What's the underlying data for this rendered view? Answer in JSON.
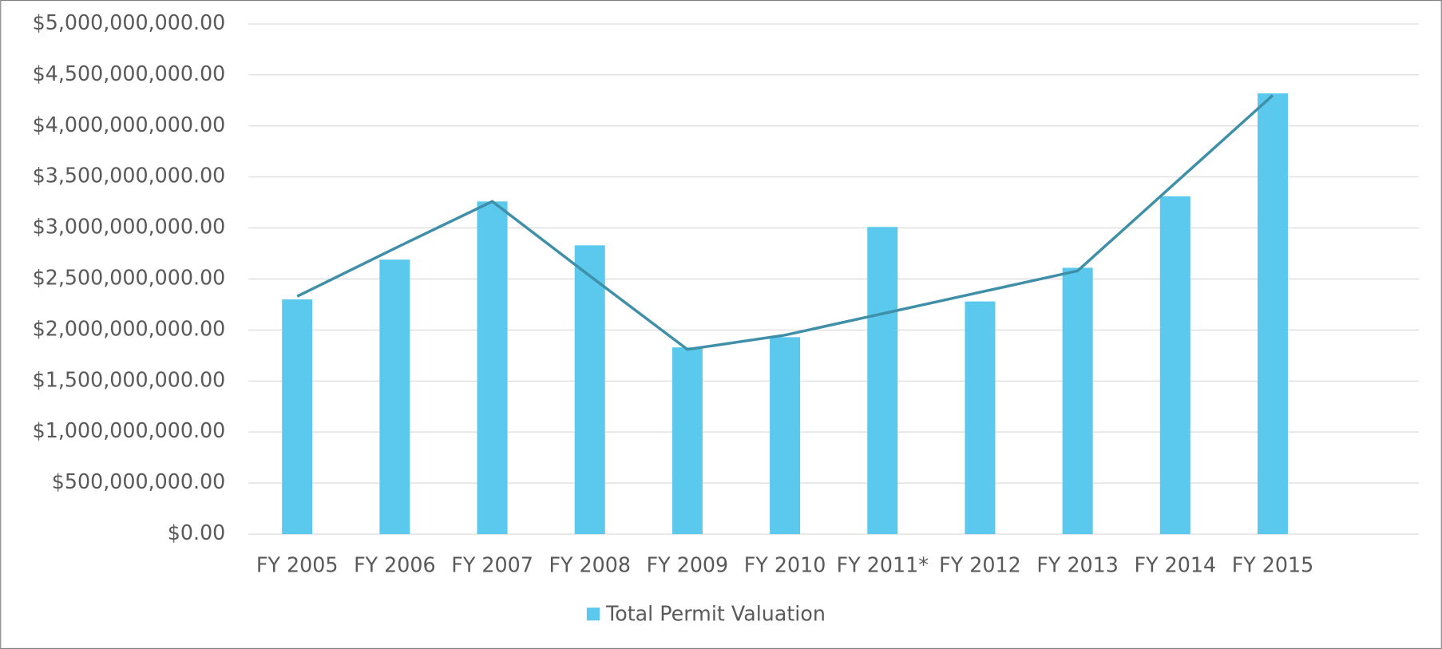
{
  "chart_data": {
    "type": "bar",
    "categories": [
      "FY 2005",
      "FY 2006",
      "FY 2007",
      "FY 2008",
      "FY 2009",
      "FY 2010",
      "FY 2011*",
      "FY 2012",
      "FY 2013",
      "FY 2014",
      "FY 2015"
    ],
    "series": [
      {
        "name": "Total Permit Valuation",
        "color": "#5bc8ed",
        "type": "bar",
        "values": [
          2300000000,
          2690000000,
          3260000000,
          2830000000,
          1830000000,
          1930000000,
          3010000000,
          2280000000,
          2610000000,
          3310000000,
          4320000000
        ]
      },
      {
        "color": "#3f8fa8",
        "type": "line",
        "values": [
          2330000000,
          2800000000,
          3260000000,
          2530000000,
          1810000000,
          1950000000,
          2160000000,
          2370000000,
          2580000000,
          3440000000,
          4300000000
        ]
      }
    ],
    "ylim": [
      0,
      5000000000
    ],
    "yticks": [
      {
        "value": 0,
        "label": "$0.00"
      },
      {
        "value": 500000000,
        "label": "$500,000,000.00"
      },
      {
        "value": 1000000000,
        "label": "$1,000,000,000.00"
      },
      {
        "value": 1500000000,
        "label": "$1,500,000,000.00"
      },
      {
        "value": 2000000000,
        "label": "$2,000,000,000.00"
      },
      {
        "value": 2500000000,
        "label": "$2,500,000,000.00"
      },
      {
        "value": 3000000000,
        "label": "$3,000,000,000.00"
      },
      {
        "value": 3500000000,
        "label": "$3,500,000,000.00"
      },
      {
        "value": 4000000000,
        "label": "$4,000,000,000.00"
      },
      {
        "value": 4500000000,
        "label": "$4,500,000,000.00"
      },
      {
        "value": 5000000000,
        "label": "$5,000,000,000.00"
      }
    ],
    "grid": true,
    "legend": "bottom"
  }
}
